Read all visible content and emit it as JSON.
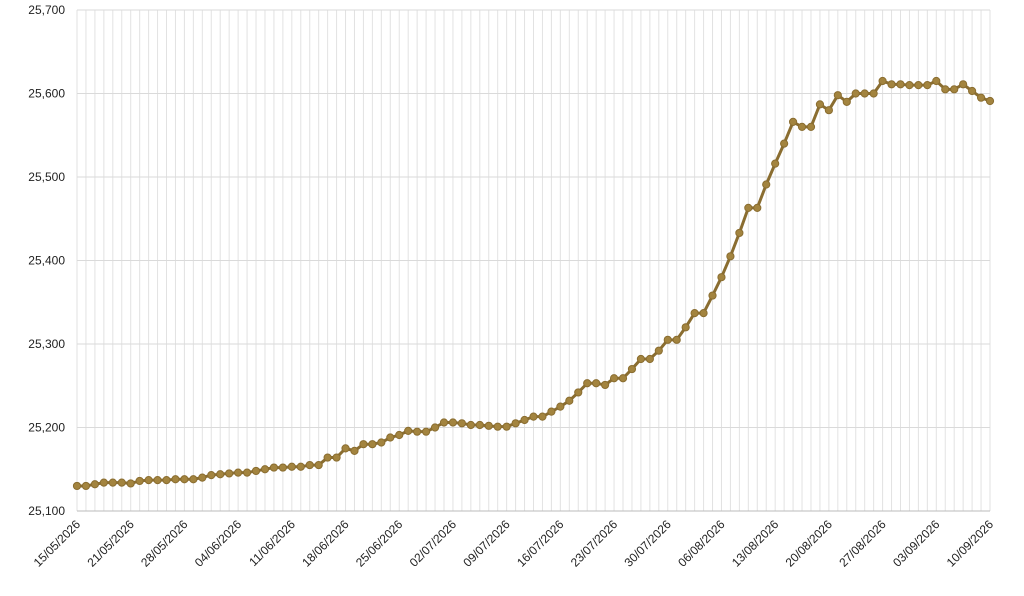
{
  "chart_data": {
    "type": "line",
    "categories": [
      "15/05/2026",
      null,
      null,
      null,
      null,
      null,
      "21/05/2026",
      null,
      null,
      null,
      null,
      null,
      "28/05/2026",
      null,
      null,
      null,
      null,
      null,
      "04/06/2026",
      null,
      null,
      null,
      null,
      null,
      "11/06/2026",
      null,
      null,
      null,
      null,
      null,
      "18/06/2026",
      null,
      null,
      null,
      null,
      null,
      "25/06/2026",
      null,
      null,
      null,
      null,
      null,
      "02/07/2026",
      null,
      null,
      null,
      null,
      null,
      "09/07/2026",
      null,
      null,
      null,
      null,
      null,
      "16/07/2026",
      null,
      null,
      null,
      null,
      null,
      "23/07/2026",
      null,
      null,
      null,
      null,
      null,
      "30/07/2026",
      null,
      null,
      null,
      null,
      null,
      "06/08/2026",
      null,
      null,
      null,
      null,
      null,
      "13/08/2026",
      null,
      null,
      null,
      null,
      null,
      "20/08/2026",
      null,
      null,
      null,
      null,
      null,
      "27/08/2026",
      null,
      null,
      null,
      null,
      null,
      "03/09/2026",
      null,
      null,
      null,
      null,
      null,
      "10/09/2026"
    ],
    "series": [
      {
        "color": "#8a6d30",
        "values": [
          25130,
          25130,
          25132,
          25134,
          25134,
          25134,
          25133,
          25136,
          25137,
          25137,
          25137,
          25138,
          25138,
          25138,
          25140,
          25143,
          25144,
          25145,
          25146,
          25146,
          25148,
          25150,
          25152,
          25152,
          25153,
          25153,
          25155,
          25155,
          25164,
          25164,
          25175,
          25172,
          25180,
          25180,
          25182,
          25188,
          25191,
          25196,
          25195,
          25195,
          25200,
          25206,
          25206,
          25205,
          25203,
          25203,
          25202,
          25201,
          25201,
          25205,
          25209,
          25213,
          25213,
          25219,
          25225,
          25232,
          25242,
          25253,
          25253,
          25251,
          25259,
          25259,
          25270,
          25282,
          25282,
          25292,
          25305,
          25305,
          25320,
          25337,
          25337,
          25358,
          25380,
          25405,
          25433,
          25463,
          25463,
          25491,
          25516,
          25540,
          25566,
          25560,
          25560,
          25587,
          25580,
          25598,
          25590,
          25600,
          25600,
          25600,
          25615,
          25611,
          25611,
          25610,
          25610,
          25610,
          25615,
          25605,
          25605,
          25611,
          25603,
          25595,
          25591
        ]
      }
    ],
    "ylim": [
      25100,
      25700
    ],
    "yticks": [
      {
        "value": 25100,
        "label": "25,100"
      },
      {
        "value": 25200,
        "label": "25,200"
      },
      {
        "value": 25300,
        "label": "25,300"
      },
      {
        "value": 25400,
        "label": "25,400"
      },
      {
        "value": 25500,
        "label": "25,500"
      },
      {
        "value": 25600,
        "label": "25,600"
      },
      {
        "value": 25700,
        "label": "25,700"
      }
    ],
    "grid": true
  }
}
